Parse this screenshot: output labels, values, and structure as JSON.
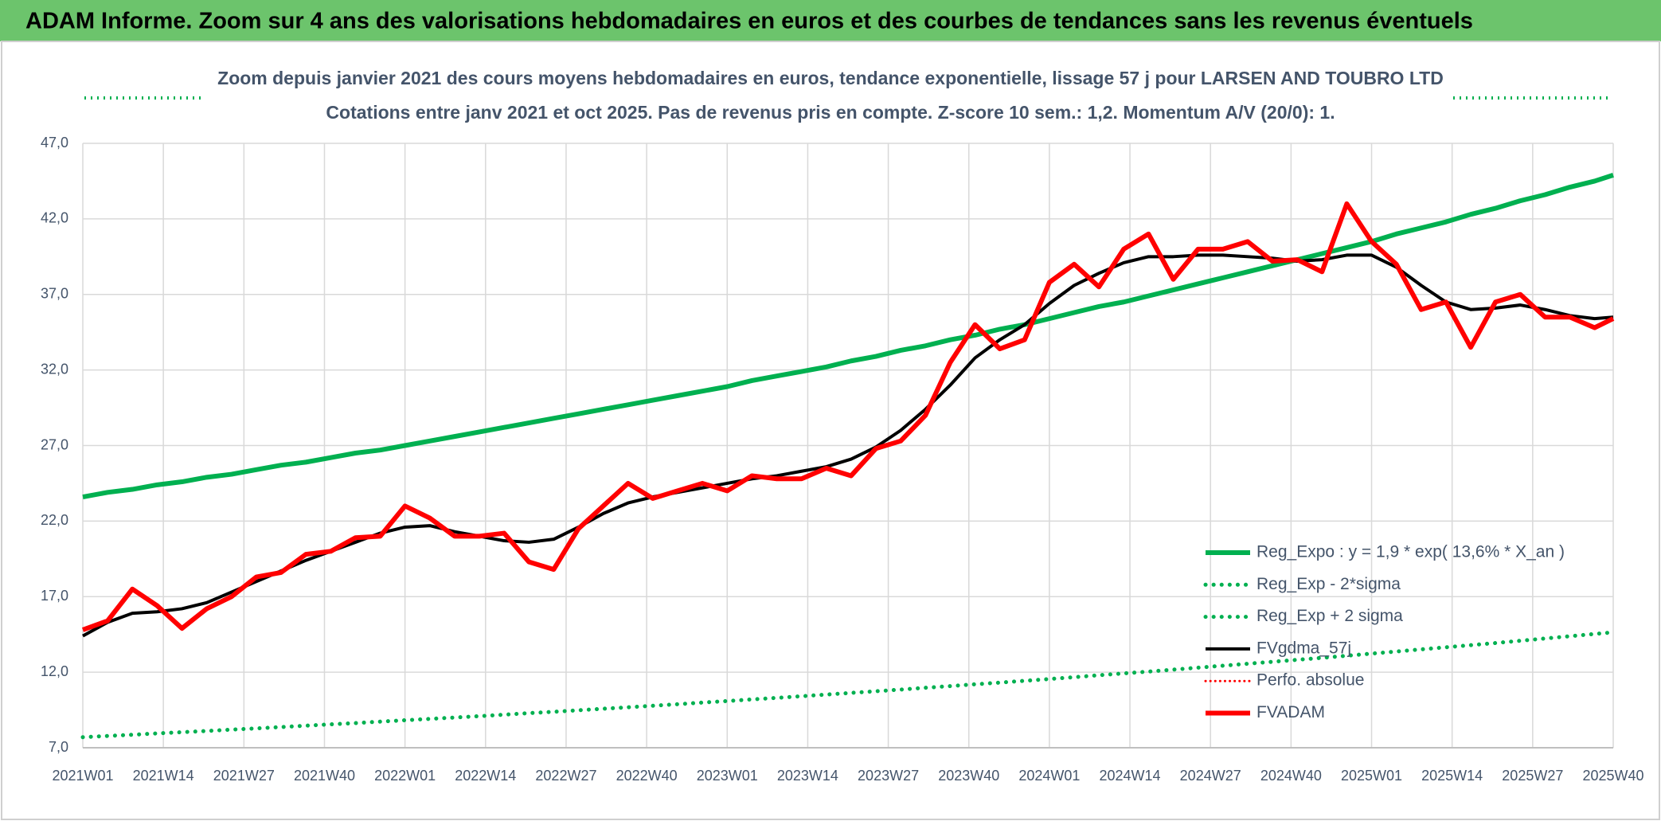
{
  "header": "ADAM Informe. Zoom sur 4 ans des valorisations hebdomadaires en euros et des courbes de tendances sans les revenus éventuels",
  "chart_data": {
    "type": "line",
    "title": "Zoom depuis janvier 2021 des cours moyens hebdomadaires en euros, tendance exponentielle, lissage 57 j pour LARSEN AND TOUBRO LTD",
    "subtitle": "Cotations entre janv 2021 et oct 2025. Pas de revenus pris en compte. Z-score 10 sem.: 1,2. Momentum A/V (20/0): 1.",
    "x": [
      0,
      4,
      8,
      12,
      16,
      20,
      24,
      28,
      32,
      36,
      40,
      44,
      48,
      52,
      56,
      60,
      64,
      68,
      72,
      76,
      80,
      84,
      88,
      92,
      96,
      100,
      104,
      108,
      112,
      116,
      120,
      124,
      128,
      132,
      136,
      140,
      144,
      148,
      152,
      156,
      160,
      164,
      168,
      172,
      176,
      180,
      184,
      188,
      192,
      196,
      200,
      204,
      208,
      212,
      216,
      220,
      224,
      228,
      232,
      236,
      240,
      244,
      247
    ],
    "xlim": [
      0,
      247
    ],
    "xticks": [
      {
        "value": 0,
        "label": "2021W01"
      },
      {
        "value": 13,
        "label": "2021W14"
      },
      {
        "value": 26,
        "label": "2021W27"
      },
      {
        "value": 39,
        "label": "2021W40"
      },
      {
        "value": 52,
        "label": "2022W01"
      },
      {
        "value": 65,
        "label": "2022W14"
      },
      {
        "value": 78,
        "label": "2022W27"
      },
      {
        "value": 91,
        "label": "2022W40"
      },
      {
        "value": 104,
        "label": "2023W01"
      },
      {
        "value": 117,
        "label": "2023W14"
      },
      {
        "value": 130,
        "label": "2023W27"
      },
      {
        "value": 143,
        "label": "2023W40"
      },
      {
        "value": 156,
        "label": "2024W01"
      },
      {
        "value": 169,
        "label": "2024W14"
      },
      {
        "value": 182,
        "label": "2024W27"
      },
      {
        "value": 195,
        "label": "2024W40"
      },
      {
        "value": 208,
        "label": "2025W01"
      },
      {
        "value": 221,
        "label": "2025W14"
      },
      {
        "value": 234,
        "label": "2025W27"
      },
      {
        "value": 247,
        "label": "2025W40"
      }
    ],
    "ylim": [
      7,
      47
    ],
    "yticks": [
      {
        "value": 7,
        "label": "7,0"
      },
      {
        "value": 12,
        "label": "12,0"
      },
      {
        "value": 17,
        "label": "17,0"
      },
      {
        "value": 22,
        "label": "22,0"
      },
      {
        "value": 27,
        "label": "27,0"
      },
      {
        "value": 32,
        "label": "32,0"
      },
      {
        "value": 37,
        "label": "37,0"
      },
      {
        "value": 42,
        "label": "42,0"
      },
      {
        "value": 47,
        "label": "47,0"
      }
    ],
    "grid": true,
    "legend": "lower right",
    "series": [
      {
        "name": "Reg_Expo : y = 1,9 * exp( 13,6% *  X_an )",
        "color": "#00b050",
        "dash": "solid",
        "width": 6,
        "values": [
          23.6,
          23.9,
          24.1,
          24.4,
          24.6,
          24.9,
          25.1,
          25.4,
          25.7,
          25.9,
          26.2,
          26.5,
          26.7,
          27.0,
          27.3,
          27.6,
          27.9,
          28.2,
          28.5,
          28.8,
          29.1,
          29.4,
          29.7,
          30.0,
          30.3,
          30.6,
          30.9,
          31.3,
          31.6,
          31.9,
          32.2,
          32.6,
          32.9,
          33.3,
          33.6,
          34.0,
          34.3,
          34.7,
          35.0,
          35.4,
          35.8,
          36.2,
          36.5,
          36.9,
          37.3,
          37.7,
          38.1,
          38.5,
          38.9,
          39.3,
          39.7,
          40.1,
          40.5,
          41.0,
          41.4,
          41.8,
          42.3,
          42.7,
          43.2,
          43.6,
          44.1,
          44.5,
          44.9
        ]
      },
      {
        "name": "Reg_Exp - 2*sigma",
        "color": "#00b050",
        "dash": "dotted",
        "width": 5,
        "values": [
          7.7,
          7.78,
          7.86,
          7.95,
          8.03,
          8.11,
          8.2,
          8.28,
          8.37,
          8.46,
          8.55,
          8.63,
          8.73,
          8.82,
          8.91,
          9.0,
          9.09,
          9.19,
          9.29,
          9.38,
          9.48,
          9.58,
          9.68,
          9.78,
          9.88,
          9.99,
          10.09,
          10.2,
          10.3,
          10.41,
          10.52,
          10.63,
          10.74,
          10.85,
          10.97,
          11.08,
          11.2,
          11.31,
          11.43,
          11.55,
          11.67,
          11.8,
          11.92,
          12.04,
          12.17,
          12.3,
          12.43,
          12.56,
          12.69,
          12.82,
          12.95,
          13.09,
          13.23,
          13.37,
          13.51,
          13.65,
          13.79,
          13.93,
          14.08,
          14.23,
          14.38,
          14.53,
          14.64
        ]
      },
      {
        "name": "Reg_Exp + 2 sigma",
        "color": "#00b050",
        "dash": "dotted",
        "width": 5,
        "values": [
          null,
          null,
          null,
          null,
          null,
          null,
          null,
          null,
          null,
          null,
          null,
          null,
          null,
          null,
          null,
          null,
          null,
          null,
          null,
          null,
          null,
          null,
          null,
          null,
          null,
          null,
          null,
          null,
          null,
          null,
          null,
          null,
          null,
          null,
          null,
          null,
          null,
          null,
          null,
          null,
          null,
          null,
          null,
          null,
          null,
          null,
          null,
          null,
          null,
          null,
          null,
          null,
          null,
          null,
          null,
          null,
          null,
          null,
          null,
          null,
          null,
          null,
          null
        ]
      },
      {
        "name": "FVgdma_57j",
        "color": "#000000",
        "dash": "solid",
        "width": 4,
        "values": [
          14.4,
          15.3,
          15.9,
          16.0,
          16.2,
          16.6,
          17.3,
          18.0,
          18.7,
          19.4,
          20.0,
          20.6,
          21.2,
          21.6,
          21.7,
          21.3,
          21.0,
          20.7,
          20.6,
          20.8,
          21.6,
          22.5,
          23.2,
          23.6,
          23.9,
          24.2,
          24.5,
          24.8,
          25.0,
          25.3,
          25.6,
          26.1,
          26.9,
          28.0,
          29.4,
          31.0,
          32.8,
          34.0,
          35.0,
          36.4,
          37.6,
          38.4,
          39.1,
          39.5,
          39.5,
          39.6,
          39.6,
          39.5,
          39.4,
          39.2,
          39.3,
          39.6,
          39.6,
          38.8,
          37.6,
          36.5,
          36.0,
          36.1,
          36.3,
          36.0,
          35.6,
          35.4,
          35.5
        ]
      },
      {
        "name": "Perfo. absolue",
        "color": "#ff0000",
        "dash": "dotted",
        "width": 3,
        "values": [
          null,
          null,
          null,
          null,
          null,
          null,
          null,
          null,
          null,
          null,
          null,
          null,
          null,
          null,
          null,
          null,
          null,
          null,
          null,
          null,
          null,
          null,
          null,
          null,
          null,
          null,
          null,
          null,
          null,
          null,
          null,
          null,
          null,
          null,
          null,
          null,
          null,
          null,
          null,
          null,
          null,
          null,
          null,
          null,
          null,
          null,
          null,
          null,
          null,
          null,
          null,
          null,
          null,
          null,
          null,
          null,
          null,
          null,
          null,
          null,
          null,
          null,
          null
        ]
      },
      {
        "name": "FVADAM",
        "color": "#ff0000",
        "dash": "solid",
        "width": 6,
        "values": [
          14.8,
          15.4,
          17.5,
          16.4,
          14.9,
          16.2,
          17.0,
          18.3,
          18.6,
          19.8,
          20.0,
          20.9,
          21.0,
          23.0,
          22.2,
          21.0,
          21.0,
          21.2,
          19.3,
          18.8,
          21.5,
          23.0,
          24.5,
          23.5,
          24.0,
          24.5,
          24.0,
          25.0,
          24.8,
          24.8,
          25.5,
          25.0,
          26.8,
          27.3,
          29.0,
          32.5,
          35.0,
          33.4,
          34.0,
          37.8,
          39.0,
          37.5,
          40.0,
          41.0,
          38.0,
          40.0,
          40.0,
          40.5,
          39.2,
          39.3,
          38.5,
          43.0,
          40.5,
          39.0,
          36.0,
          36.5,
          33.5,
          36.5,
          37.0,
          35.5,
          35.5,
          34.8,
          35.4
        ]
      }
    ]
  }
}
